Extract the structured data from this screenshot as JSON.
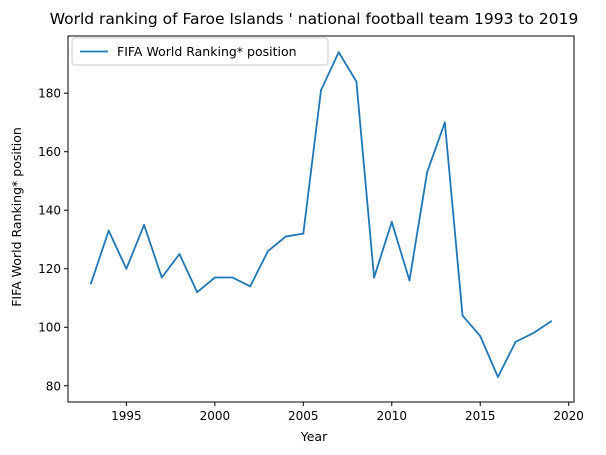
{
  "chart_data": {
    "type": "line",
    "title": "World ranking of Faroe Islands ' national football team 1993 to 2019",
    "xlabel": "Year",
    "ylabel": "FIFA World Ranking* position",
    "xlim": [
      1991.7,
      2020.3
    ],
    "ylim": [
      74.45,
      199.55
    ],
    "xticks": [
      1995,
      2000,
      2005,
      2010,
      2015,
      2020
    ],
    "yticks": [
      80,
      100,
      120,
      140,
      160,
      180
    ],
    "grid": false,
    "legend_position": "top-left",
    "series": [
      {
        "name": "FIFA World Ranking* position",
        "color": "#1f77b4",
        "x": [
          1993,
          1994,
          1995,
          1996,
          1997,
          1998,
          1999,
          2000,
          2001,
          2002,
          2003,
          2004,
          2005,
          2006,
          2007,
          2008,
          2009,
          2010,
          2011,
          2012,
          2013,
          2014,
          2015,
          2016,
          2017,
          2018,
          2019
        ],
        "y": [
          115,
          133,
          120,
          135,
          117,
          125,
          112,
          117,
          117,
          114,
          126,
          131,
          132,
          181,
          194,
          184,
          117,
          136,
          116,
          153,
          170,
          104,
          97,
          83,
          95,
          98,
          102
        ]
      }
    ]
  }
}
